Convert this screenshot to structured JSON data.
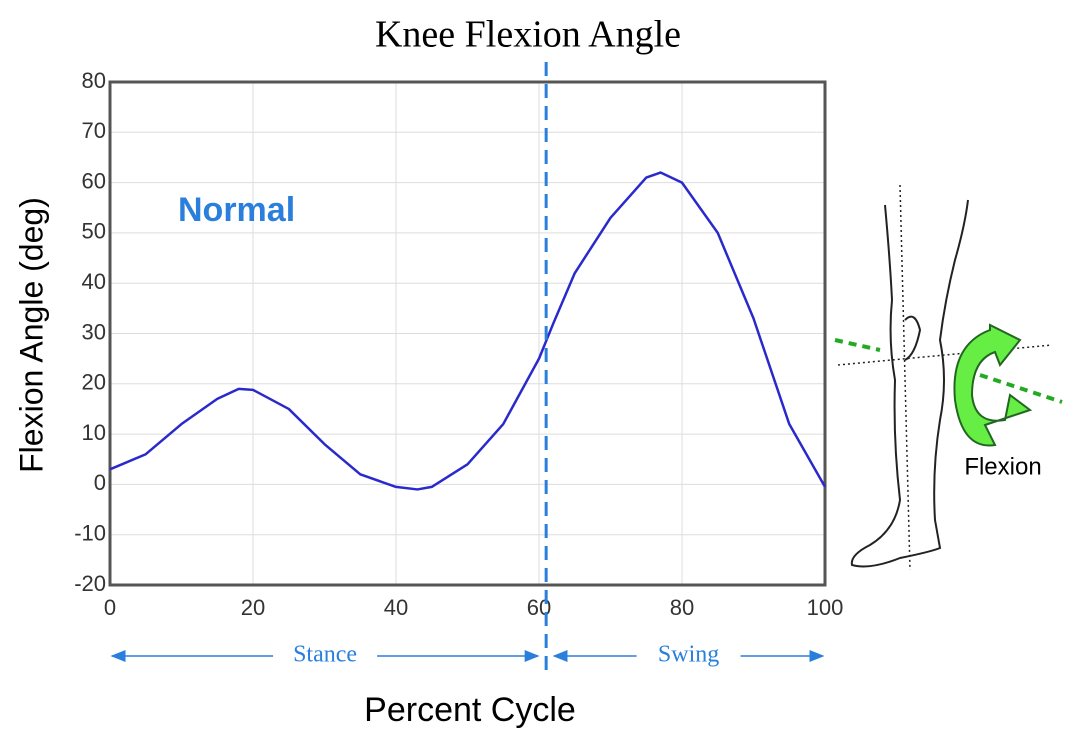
{
  "chart_data": {
    "type": "line",
    "title": "Knee Flexion Angle",
    "xlabel": "Percent Cycle",
    "ylabel": "Flexion Angle (deg)",
    "xlim": [
      0,
      100
    ],
    "ylim": [
      -20,
      80
    ],
    "xticks": [
      0,
      20,
      40,
      60,
      80,
      100
    ],
    "yticks": [
      -20,
      -10,
      0,
      10,
      20,
      30,
      40,
      50,
      60,
      70,
      80
    ],
    "grid": true,
    "series": [
      {
        "name": "Normal",
        "color": "#2a2acc",
        "x": [
          0,
          5,
          10,
          15,
          18,
          20,
          25,
          30,
          35,
          40,
          43,
          45,
          50,
          55,
          60,
          62,
          65,
          70,
          75,
          77,
          80,
          85,
          90,
          95,
          100
        ],
        "values": [
          3,
          6,
          12,
          17,
          19,
          18.8,
          15,
          8,
          2,
          -0.5,
          -1,
          -0.5,
          4,
          12,
          25,
          32,
          42,
          53,
          61,
          62,
          60,
          50,
          33,
          12,
          -0.5
        ]
      }
    ],
    "phase_divider": 61,
    "phases": [
      "Stance",
      "Swing"
    ],
    "figure_label": "Flexion"
  }
}
